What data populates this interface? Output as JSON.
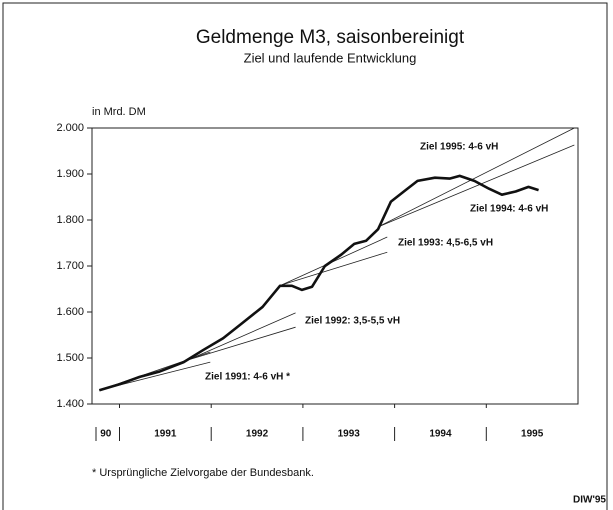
{
  "chart_data": {
    "type": "line",
    "title": "Geldmenge M3, saisonbereinigt",
    "subtitle": "Ziel und laufende Entwicklung",
    "y_label": "in Mrd. DM",
    "footnote": "* Ursprüngliche Zielvorgabe der Bundesbank.",
    "source": "DIW'95",
    "xlim": [
      1990.7,
      1996
    ],
    "ylim": [
      1400,
      2000
    ],
    "xticks": [
      1991,
      1992,
      1993,
      1994,
      1995
    ],
    "x_labels": [
      {
        "value": 1990.85,
        "label": "90"
      },
      {
        "value": 1991.5,
        "label": "1991"
      },
      {
        "value": 1992.5,
        "label": "1992"
      },
      {
        "value": 1993.5,
        "label": "1993"
      },
      {
        "value": 1994.5,
        "label": "1994"
      },
      {
        "value": 1995.5,
        "label": "1995"
      }
    ],
    "yticks": [
      {
        "value": 1400,
        "label": "1.400"
      },
      {
        "value": 1500,
        "label": "1.500"
      },
      {
        "value": 1600,
        "label": "1.600"
      },
      {
        "value": 1700,
        "label": "1.700"
      },
      {
        "value": 1800,
        "label": "1.800"
      },
      {
        "value": 1900,
        "label": "1.900"
      },
      {
        "value": 2000,
        "label": "2.000"
      }
    ],
    "series": [
      {
        "color": "#111111",
        "x": [
          1990.78,
          1991.0,
          1991.22,
          1991.43,
          1991.7,
          1991.91,
          1992.13,
          1992.34,
          1992.56,
          1992.75,
          1992.88,
          1992.99,
          1993.1,
          1993.24,
          1993.42,
          1993.56,
          1993.69,
          1993.82,
          1993.96,
          1994.12,
          1994.25,
          1994.44,
          1994.6,
          1994.71,
          1994.87,
          1995.03,
          1995.17,
          1995.32,
          1995.46,
          1995.57
        ],
        "values": [
          1430,
          1443,
          1459,
          1470,
          1491,
          1517,
          1543,
          1576,
          1611,
          1657,
          1657,
          1648,
          1655,
          1700,
          1725,
          1748,
          1755,
          1780,
          1840,
          1865,
          1885,
          1892,
          1890,
          1896,
          1885,
          1868,
          1855,
          1862,
          1872,
          1865
        ]
      }
    ],
    "corridors": [
      {
        "label": "Ziel 1991: 4-6 vH *",
        "x": [
          1990.78,
          1991.99
        ],
        "lines": [
          [
            1430,
            1513
          ],
          [
            1430,
            1491
          ]
        ]
      },
      {
        "label": "Ziel 1992: 3,5-5,5 vH",
        "x": [
          1991.75,
          1992.92
        ],
        "lines": [
          [
            1496,
            1598
          ],
          [
            1496,
            1567
          ]
        ]
      },
      {
        "label": "Ziel 1993: 4,5-6,5 vH",
        "x": [
          1992.77,
          1993.92
        ],
        "lines": [
          [
            1659,
            1763
          ],
          [
            1659,
            1730
          ]
        ]
      },
      {
        "label": "Ziel 1995: 4-6 vH",
        "x": [
          1993.82,
          1995.96
        ],
        "lines": [
          [
            1785,
            2000
          ]
        ]
      },
      {
        "label": "Ziel 1994: 4-6 vH",
        "x": [
          1993.82,
          1995.96
        ],
        "lines": [
          [
            1785,
            1963
          ]
        ]
      }
    ]
  }
}
